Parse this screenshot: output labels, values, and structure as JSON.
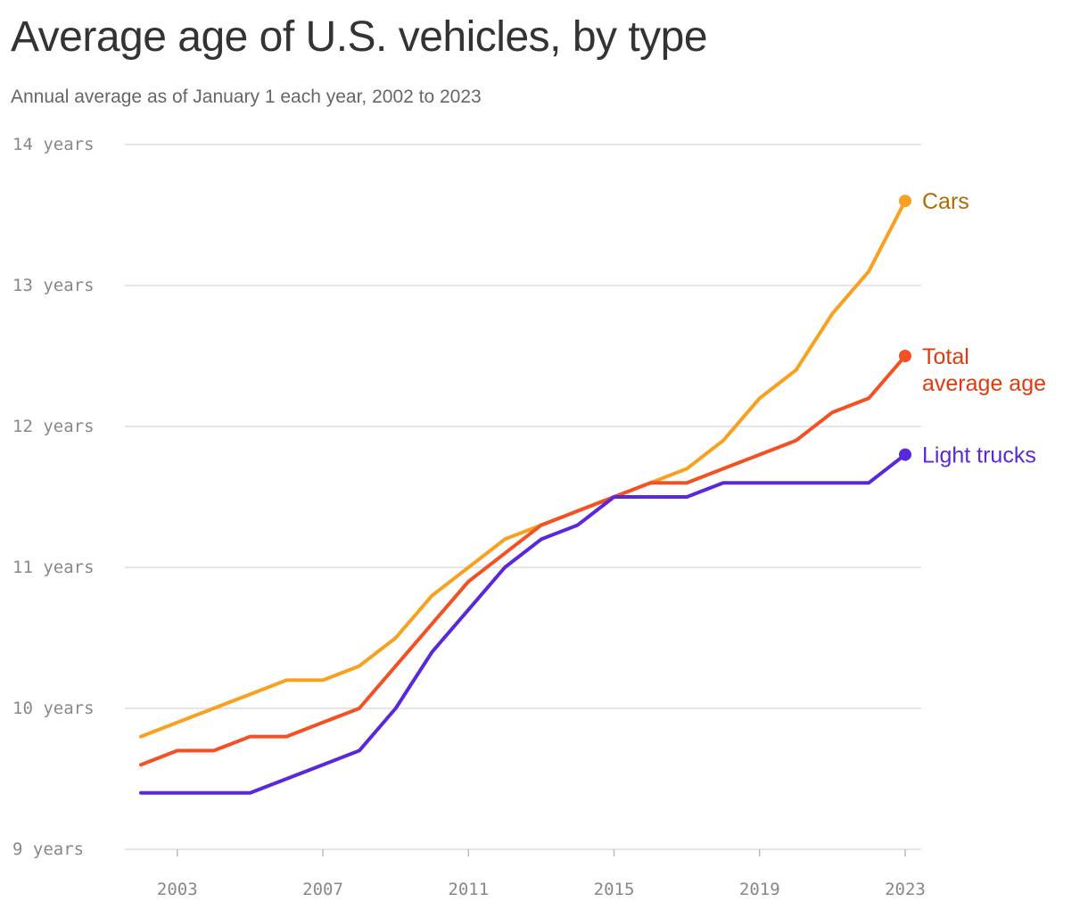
{
  "title": "Average age of U.S. vehicles, by type",
  "subtitle": "Annual average as of January 1 each year, 2002 to 2023",
  "chart_data": {
    "type": "line",
    "title": "Average age of U.S. vehicles, by type",
    "subtitle": "Annual average as of January 1 each year, 2002 to 2023",
    "xlabel": "",
    "ylabel": "",
    "x": [
      2002,
      2003,
      2004,
      2005,
      2006,
      2007,
      2008,
      2009,
      2010,
      2011,
      2012,
      2013,
      2014,
      2015,
      2016,
      2017,
      2018,
      2019,
      2020,
      2021,
      2022,
      2023
    ],
    "xticks": [
      "2003",
      "2007",
      "2011",
      "2015",
      "2019",
      "2023"
    ],
    "xtick_values": [
      2003,
      2007,
      2011,
      2015,
      2019,
      2023
    ],
    "ylim": [
      9,
      14
    ],
    "yticks": [
      "9 years",
      "10 years",
      "11 years",
      "12 years",
      "13 years",
      "14 years"
    ],
    "ytick_values": [
      9,
      10,
      11,
      12,
      13,
      14
    ],
    "grid": "horizontal",
    "legend": "direct labels at line ends",
    "series": [
      {
        "name": "Cars",
        "label_lines": [
          "Cars"
        ],
        "color": "#F8A01F",
        "label_color": "#B36B00",
        "values": [
          9.8,
          9.9,
          10.0,
          10.1,
          10.2,
          10.2,
          10.3,
          10.5,
          10.8,
          11.0,
          11.2,
          11.3,
          11.4,
          11.5,
          11.6,
          11.7,
          11.9,
          12.2,
          12.4,
          12.8,
          13.1,
          13.6
        ]
      },
      {
        "name": "Total average age",
        "label_lines": [
          "Total",
          "average age"
        ],
        "color": "#F35024",
        "label_color": "#E03A0E",
        "values": [
          9.6,
          9.7,
          9.7,
          9.8,
          9.8,
          9.9,
          10.0,
          10.3,
          10.6,
          10.9,
          11.1,
          11.3,
          11.4,
          11.5,
          11.6,
          11.6,
          11.7,
          11.8,
          11.9,
          12.1,
          12.2,
          12.5
        ]
      },
      {
        "name": "Light trucks",
        "label_lines": [
          "Light trucks"
        ],
        "color": "#5928DB",
        "label_color": "#5928DB",
        "values": [
          9.4,
          9.4,
          9.4,
          9.4,
          9.5,
          9.6,
          9.7,
          10.0,
          10.4,
          10.7,
          11.0,
          11.2,
          11.3,
          11.5,
          11.5,
          11.5,
          11.6,
          11.6,
          11.6,
          11.6,
          11.6,
          11.8
        ]
      }
    ]
  }
}
